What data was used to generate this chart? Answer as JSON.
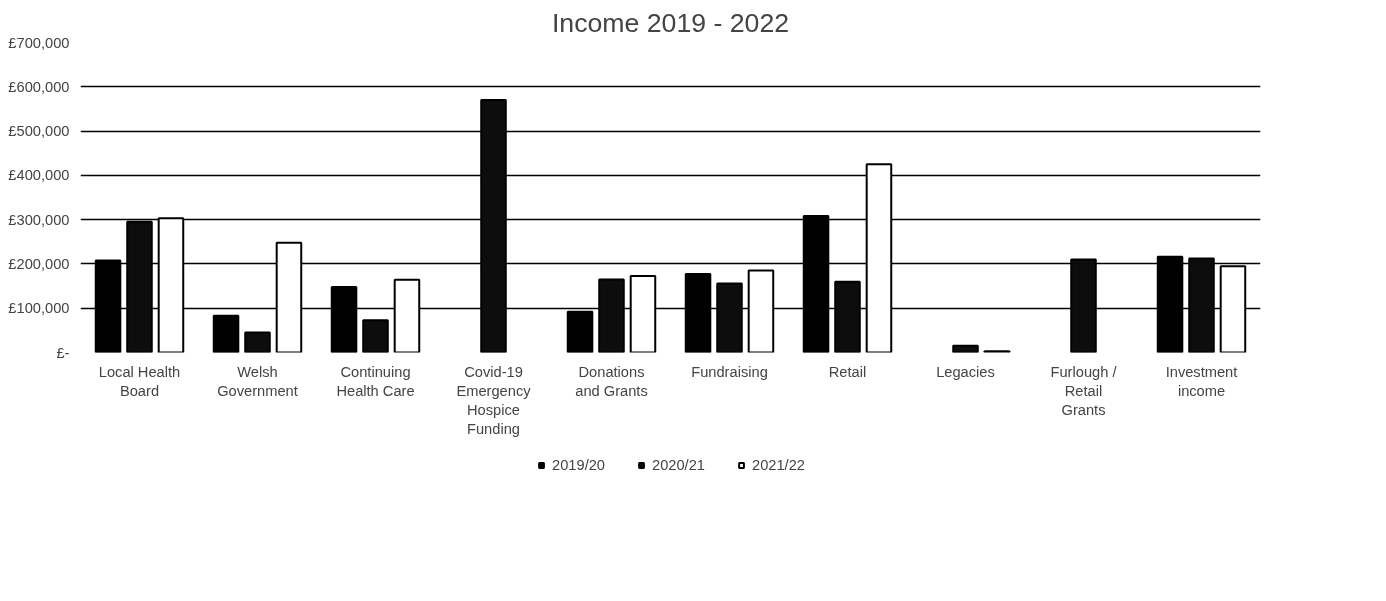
{
  "chart_data": {
    "type": "bar",
    "title": "Income 2019 - 2022",
    "categories": [
      "Local Health Board",
      "Welsh Government",
      "Continuing Health Care",
      "Covid-19 Emergency Hospice Funding",
      "Donations and Grants",
      "Fundraising",
      "Retail",
      "Legacies",
      "Furlough / Retail Grants",
      "Investment income"
    ],
    "series": [
      {
        "name": "2019/20",
        "color": "#000000",
        "values": [
          208000,
          83000,
          148000,
          null,
          92000,
          177000,
          308000,
          null,
          null,
          216000
        ]
      },
      {
        "name": "2020/21",
        "color": "#0d0d0d",
        "values": [
          295000,
          45000,
          73000,
          570000,
          165000,
          156000,
          160000,
          15000,
          210000,
          212000
        ]
      },
      {
        "name": "2021/22",
        "color": "#ffffff",
        "values": [
          303000,
          248000,
          164000,
          null,
          173000,
          185000,
          425000,
          3000,
          null,
          195000
        ]
      }
    ],
    "ylim": [
      0,
      700000
    ],
    "yticks": [
      {
        "value": 0,
        "label": "£-"
      },
      {
        "value": 100000,
        "label": "£100,000"
      },
      {
        "value": 200000,
        "label": "£200,000"
      },
      {
        "value": 300000,
        "label": "£300,000"
      },
      {
        "value": 400000,
        "label": "£400,000"
      },
      {
        "value": 500000,
        "label": "£500,000"
      },
      {
        "value": 600000,
        "label": "£600,000"
      },
      {
        "value": 700000,
        "label": "£700,000"
      }
    ],
    "grid": "y",
    "legend": "bottom"
  }
}
